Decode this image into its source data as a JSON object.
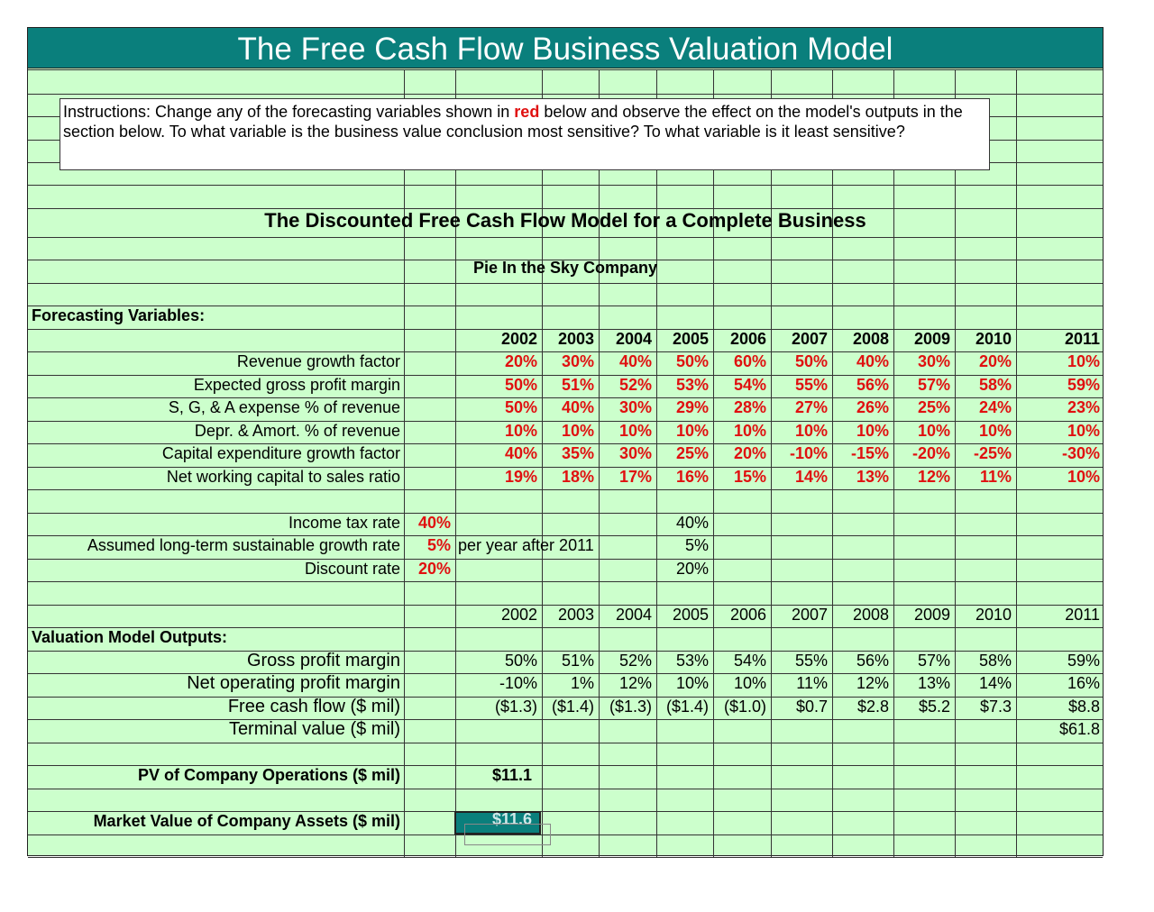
{
  "title": "The Free Cash Flow Business Valuation Model",
  "instructions": {
    "before": "Instructions:  Change any of the forecasting variables shown in ",
    "red_word": "red",
    "after": " below and observe the effect on the model's outputs in the section below.  To what variable is the business value conclusion most sensitive?  To what variable is it least sensitive?"
  },
  "model_title": "The Discounted Free Cash Flow Model for a Complete Business",
  "company": "Pie In the Sky Company",
  "forecasting_header": "Forecasting Variables:",
  "years": [
    "2002",
    "2003",
    "2004",
    "2005",
    "2006",
    "2007",
    "2008",
    "2009",
    "2010",
    "2011"
  ],
  "forecast_rows": [
    {
      "label": "Revenue growth factor",
      "values": [
        "20%",
        "30%",
        "40%",
        "50%",
        "60%",
        "50%",
        "40%",
        "30%",
        "20%",
        "10%"
      ]
    },
    {
      "label": "Expected gross profit margin",
      "values": [
        "50%",
        "51%",
        "52%",
        "53%",
        "54%",
        "55%",
        "56%",
        "57%",
        "58%",
        "59%"
      ]
    },
    {
      "label": "S, G, & A expense % of revenue",
      "values": [
        "50%",
        "40%",
        "30%",
        "29%",
        "28%",
        "27%",
        "26%",
        "25%",
        "24%",
        "23%"
      ]
    },
    {
      "label": "Depr. & Amort. % of revenue",
      "values": [
        "10%",
        "10%",
        "10%",
        "10%",
        "10%",
        "10%",
        "10%",
        "10%",
        "10%",
        "10%"
      ]
    },
    {
      "label": "Capital expenditure growth factor",
      "values": [
        "40%",
        "35%",
        "30%",
        "25%",
        "20%",
        "-10%",
        "-15%",
        "-20%",
        "-25%",
        "-30%"
      ]
    },
    {
      "label": "Net working capital to sales ratio",
      "values": [
        "19%",
        "18%",
        "17%",
        "16%",
        "15%",
        "14%",
        "13%",
        "12%",
        "11%",
        "10%"
      ]
    }
  ],
  "rates": [
    {
      "label": "Income tax rate",
      "input": "40%",
      "note": "",
      "echo": "40%"
    },
    {
      "label": "Assumed long-term sustainable growth rate",
      "input": "5%",
      "note": "per year after 2011",
      "echo": "5%"
    },
    {
      "label": "Discount rate",
      "input": "20%",
      "note": "",
      "echo": "20%"
    }
  ],
  "outputs_header": "Valuation Model Outputs:",
  "output_rows": [
    {
      "label": "Gross profit margin",
      "values": [
        "50%",
        "51%",
        "52%",
        "53%",
        "54%",
        "55%",
        "56%",
        "57%",
        "58%",
        "59%"
      ]
    },
    {
      "label": "Net operating profit margin",
      "values": [
        "-10%",
        "1%",
        "12%",
        "10%",
        "10%",
        "11%",
        "12%",
        "13%",
        "14%",
        "16%"
      ]
    },
    {
      "label": "Free cash flow ($ mil)",
      "values": [
        "($1.3)",
        "($1.4)",
        "($1.3)",
        "($1.4)",
        "($1.0)",
        "$0.7",
        "$2.8",
        "$5.2",
        "$7.3",
        "$8.8"
      ]
    },
    {
      "label": "Terminal value ($ mil)",
      "values": [
        "",
        "",
        "",
        "",
        "",
        "",
        "",
        "",
        "",
        "$61.8"
      ]
    }
  ],
  "pv_label": "PV of Company Operations ($ mil)",
  "pv_value": "$11.1",
  "mv_label": "Market Value of Company Assets ($ mil)",
  "mv_value": "$11.6"
}
